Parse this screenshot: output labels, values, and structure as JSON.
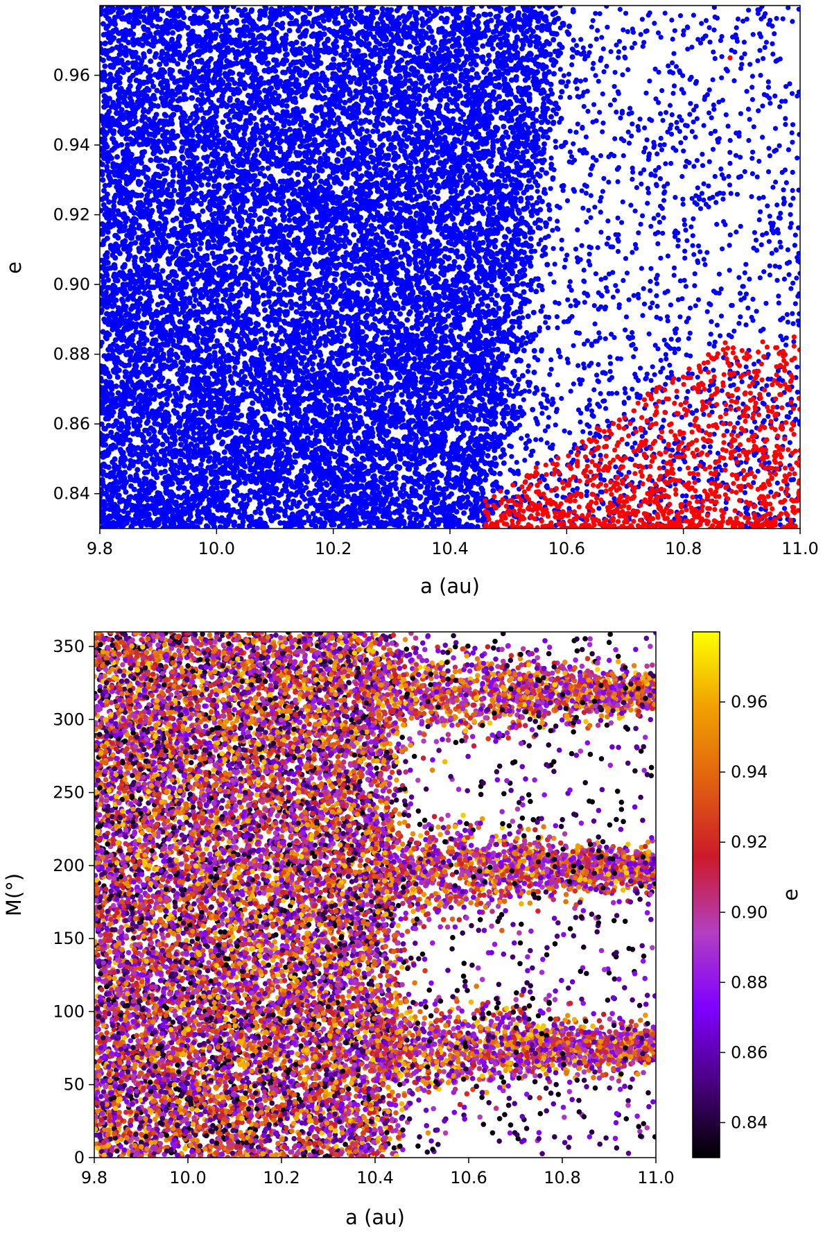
{
  "chart_data": [
    {
      "type": "scatter",
      "title": "",
      "xlabel": "a (au)",
      "ylabel": "e",
      "xlim": [
        9.8,
        11.0
      ],
      "ylim": [
        0.83,
        0.98
      ],
      "xticks": [
        "9.8",
        "10.0",
        "10.2",
        "10.4",
        "10.6",
        "10.8",
        "11.0"
      ],
      "yticks": [
        "0.84",
        "0.86",
        "0.88",
        "0.90",
        "0.92",
        "0.94",
        "0.96"
      ],
      "grid": false,
      "series": [
        {
          "color": "#0000ff",
          "description_points": [
            {
              "a": 9.85,
              "e": 0.96
            },
            {
              "a": 10.0,
              "e": 0.95
            },
            {
              "a": 10.2,
              "e": 0.93
            },
            {
              "a": 10.35,
              "e": 0.91
            },
            {
              "a": 10.45,
              "e": 0.89
            },
            {
              "a": 10.1,
              "e": 0.86
            },
            {
              "a": 10.3,
              "e": 0.84
            },
            {
              "a": 10.55,
              "e": 0.93
            },
            {
              "a": 10.7,
              "e": 0.96
            },
            {
              "a": 10.85,
              "e": 0.92
            },
            {
              "a": 10.95,
              "e": 0.88
            },
            {
              "a": 10.65,
              "e": 0.87
            },
            {
              "a": 10.8,
              "e": 0.85
            },
            {
              "a": 10.98,
              "e": 0.84
            }
          ]
        },
        {
          "color": "#ff0000",
          "description_points": [
            {
              "a": 10.46,
              "e": 0.837
            },
            {
              "a": 10.5,
              "e": 0.85
            },
            {
              "a": 10.55,
              "e": 0.84
            },
            {
              "a": 10.6,
              "e": 0.862
            },
            {
              "a": 10.65,
              "e": 0.845
            },
            {
              "a": 10.7,
              "e": 0.855
            },
            {
              "a": 10.75,
              "e": 0.87
            },
            {
              "a": 10.8,
              "e": 0.84
            },
            {
              "a": 10.85,
              "e": 0.86
            },
            {
              "a": 10.9,
              "e": 0.875
            },
            {
              "a": 10.95,
              "e": 0.85
            },
            {
              "a": 10.88,
              "e": 0.965
            }
          ]
        }
      ]
    },
    {
      "type": "scatter",
      "title": "",
      "xlabel": "a (au)",
      "ylabel": "M(°)",
      "xlim": [
        9.8,
        11.0
      ],
      "ylim": [
        0,
        360
      ],
      "xticks": [
        "9.8",
        "10.0",
        "10.2",
        "10.4",
        "10.6",
        "10.8",
        "11.0"
      ],
      "yticks": [
        "0",
        "50",
        "100",
        "150",
        "200",
        "250",
        "300",
        "350"
      ],
      "grid": false,
      "colorbar": {
        "label": "e",
        "range": [
          0.83,
          0.98
        ],
        "ticks": [
          "0.84",
          "0.86",
          "0.88",
          "0.90",
          "0.92",
          "0.94",
          "0.96"
        ],
        "colormap": "gnuplot",
        "stops": [
          "#000000",
          "#4a0080",
          "#8000ff",
          "#b33fc0",
          "#cc1a2a",
          "#e06010",
          "#f0a000",
          "#ffff00"
        ]
      },
      "description_points": [
        {
          "a": 10.0,
          "M": 300,
          "e": 0.92
        },
        {
          "a": 10.2,
          "M": 200,
          "e": 0.94
        },
        {
          "a": 10.3,
          "M": 100,
          "e": 0.88
        },
        {
          "a": 10.5,
          "M": 200,
          "e": 0.9
        },
        {
          "a": 10.8,
          "M": 200,
          "e": 0.93
        },
        {
          "a": 10.8,
          "M": 75,
          "e": 0.92
        },
        {
          "a": 10.8,
          "M": 318,
          "e": 0.93
        },
        {
          "a": 10.7,
          "M": 250,
          "e": 0.85
        },
        {
          "a": 10.7,
          "M": 140,
          "e": 0.84
        },
        {
          "a": 10.7,
          "M": 30,
          "e": 0.85
        }
      ]
    }
  ]
}
